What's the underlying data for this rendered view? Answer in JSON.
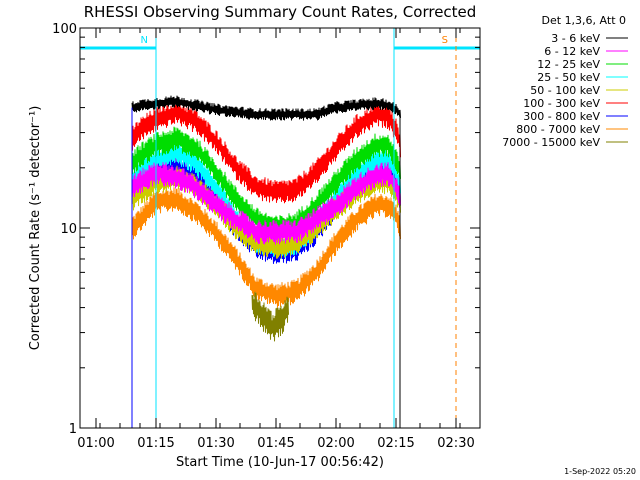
{
  "chart_data": {
    "type": "line",
    "title": "RHESSI Observing Summary Count Rates, Corrected",
    "xlabel": "Start Time (10-Jun-17 00:56:42)",
    "ylabel": "Corrected Count Rate (s⁻¹ detector⁻¹)",
    "ylog": true,
    "ylim": [
      1,
      100
    ],
    "xlim_minutes": [
      56.0,
      156.0
    ],
    "x_ticks": [
      "01:00",
      "01:15",
      "01:30",
      "01:45",
      "02:00",
      "02:15",
      "02:30"
    ],
    "x_tick_minutes": [
      60,
      75,
      90,
      105,
      120,
      135,
      150
    ],
    "y_ticks": [
      "1",
      "10",
      "100"
    ],
    "y_tick_values": [
      1,
      10,
      100
    ],
    "legend_header": "Det 1,3,6, Att 0",
    "series": [
      {
        "name": "3 - 6 keV",
        "color": "#000000",
        "x": [
          69,
          71,
          75,
          80,
          85,
          90,
          95,
          100,
          105,
          110,
          115,
          120,
          125,
          130,
          133,
          135,
          136
        ],
        "values": [
          40,
          41,
          42,
          43,
          41,
          39,
          38,
          37,
          37,
          37,
          37,
          40,
          41,
          42,
          41,
          39,
          37
        ]
      },
      {
        "name": "6 - 12 keV",
        "color": "#ff00ff",
        "x": [
          69,
          71,
          75,
          80,
          85,
          90,
          95,
          100,
          105,
          110,
          115,
          120,
          125,
          130,
          133,
          135,
          136
        ],
        "values": [
          16,
          17,
          19,
          18,
          16,
          13,
          11,
          9.6,
          9.5,
          9.6,
          11,
          13,
          16,
          18.5,
          18.5,
          16,
          14
        ]
      },
      {
        "name": "12 - 25 keV",
        "color": "#00dd00",
        "x": [
          69,
          71,
          75,
          80,
          85,
          90,
          95,
          100,
          105,
          110,
          115,
          120,
          125,
          130,
          133,
          135,
          136
        ],
        "values": [
          21,
          23,
          26,
          28,
          25,
          19,
          14,
          11,
          10,
          10.5,
          13,
          17,
          22,
          26,
          26,
          22,
          19
        ]
      },
      {
        "name": "25 - 50 keV",
        "color": "#00ffff",
        "x": [
          69,
          71,
          75,
          80,
          85,
          90,
          95,
          100,
          105,
          110,
          115,
          120,
          125,
          130,
          133,
          135,
          136
        ],
        "values": [
          17,
          19,
          22,
          24,
          21,
          16,
          11,
          8.6,
          8.0,
          8.4,
          10.5,
          14,
          18.5,
          22,
          22,
          19,
          16
        ]
      },
      {
        "name": "50 - 100 keV",
        "color": "#cccc00",
        "x": [
          69,
          71,
          75,
          80,
          85,
          90,
          95,
          100,
          105,
          110,
          115,
          120,
          125,
          130,
          133,
          135,
          136
        ],
        "values": [
          14,
          15,
          17,
          18,
          16,
          13,
          10,
          8.5,
          8.0,
          8.3,
          10,
          12.5,
          15,
          17,
          17,
          15,
          13
        ]
      },
      {
        "name": "100 - 300 keV",
        "color": "#ff0000",
        "x": [
          69,
          71,
          75,
          80,
          85,
          90,
          95,
          100,
          105,
          110,
          115,
          120,
          125,
          130,
          133,
          135,
          136
        ],
        "values": [
          28,
          31,
          35,
          38,
          34,
          27,
          20,
          16,
          15,
          15.5,
          19,
          25,
          32,
          37,
          36,
          31,
          26
        ]
      },
      {
        "name": "300 - 800 keV",
        "color": "#0000ff",
        "x": [
          69,
          71,
          75,
          80,
          85,
          90,
          95,
          100,
          105,
          110,
          115,
          120,
          125,
          130,
          133,
          135,
          136
        ],
        "values": [
          16,
          17,
          19,
          20,
          18,
          14,
          10,
          8.0,
          7.5,
          7.8,
          9.5,
          13,
          16.5,
          19.5,
          19.5,
          17,
          14
        ]
      },
      {
        "name": "800 - 7000 keV",
        "color": "#ff8800",
        "x": [
          69,
          71,
          75,
          80,
          85,
          90,
          95,
          100,
          105,
          110,
          115,
          120,
          125,
          130,
          133,
          135,
          136
        ],
        "values": [
          10,
          11,
          13.5,
          14,
          12,
          9.5,
          7.0,
          5.0,
          4.6,
          4.8,
          6.0,
          8.5,
          11,
          13,
          13,
          11.5,
          10
        ]
      },
      {
        "name": "7000 - 15000 keV",
        "color": "#808000",
        "x": [
          99,
          102,
          104,
          106,
          108
        ],
        "values": [
          4.2,
          3.6,
          3.2,
          3.4,
          4.0
        ]
      }
    ],
    "annotations": [
      {
        "label": "N",
        "color": "#00e5ff",
        "x_minutes": 75.0,
        "style": "dashed"
      },
      {
        "label": "S",
        "color": "#ff8000",
        "x_minutes": 150.0,
        "style": "dashed"
      }
    ],
    "night_intervals_minutes": [
      [
        56.0,
        75.0
      ],
      [
        134.5,
        156.0
      ]
    ],
    "data_gap_start_minutes": 69,
    "data_gap_end_minutes": 136,
    "night_bar_color": "#00e5ff",
    "saa_line_color": "#ff8000"
  },
  "footer": {
    "timestamp": "1-Sep-2022 05:20"
  }
}
